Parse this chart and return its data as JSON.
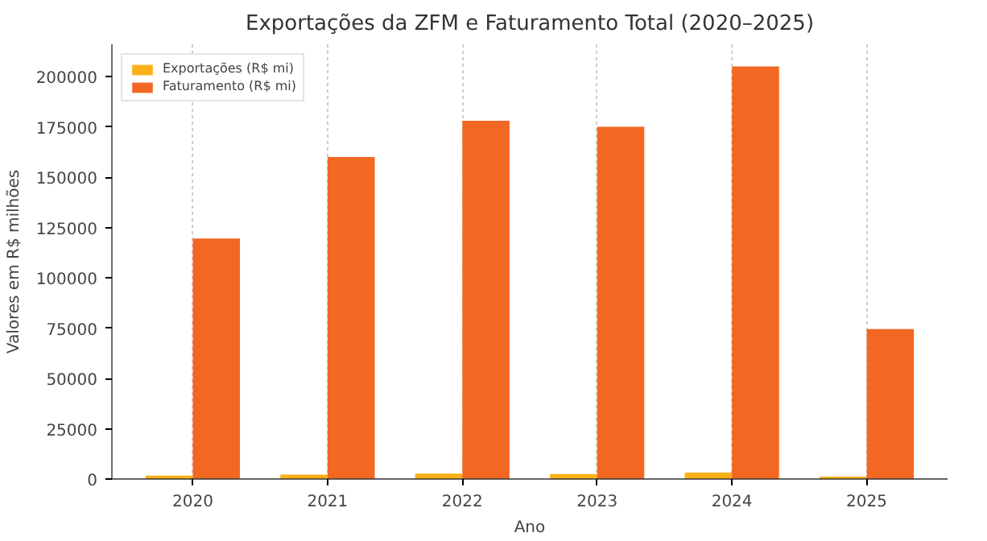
{
  "chart_data": {
    "type": "bar",
    "title": "Exportações da ZFM e Faturamento Total (2020–2025)",
    "xlabel": "Ano",
    "ylabel": "Valores em R$ milhões",
    "categories": [
      "2020",
      "2021",
      "2022",
      "2023",
      "2024",
      "2025"
    ],
    "series": [
      {
        "name": "Exportações (R$ mi)",
        "color": "#fbb117",
        "values": [
          1700,
          2200,
          2700,
          2500,
          3200,
          1200
        ]
      },
      {
        "name": "Faturamento (R$ mi)",
        "color": "#f26722",
        "values": [
          119500,
          160000,
          178000,
          175000,
          205000,
          74500
        ]
      }
    ],
    "ylim": [
      0,
      216000
    ],
    "yticks": [
      0,
      25000,
      50000,
      75000,
      100000,
      125000,
      150000,
      175000,
      200000
    ],
    "grid": "x",
    "legend": "top left"
  }
}
